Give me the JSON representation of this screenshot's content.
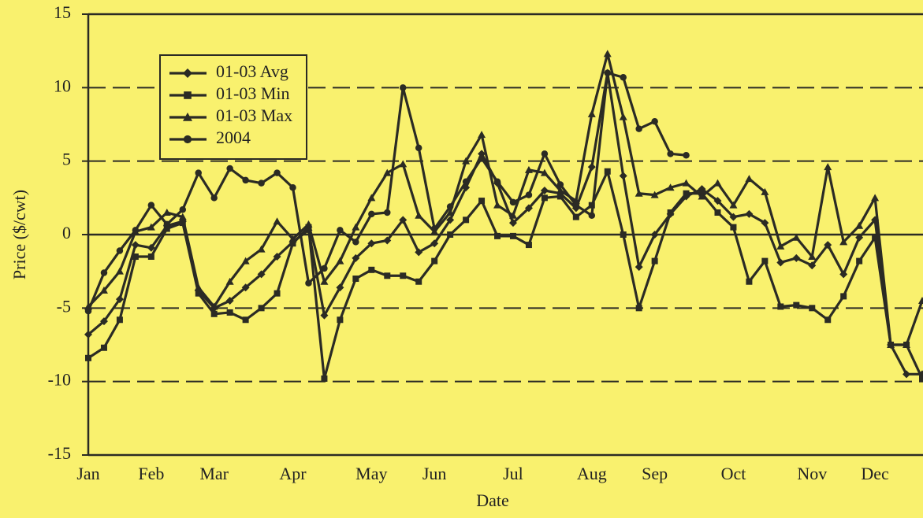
{
  "chart_data": {
    "type": "line",
    "x_label": "Date",
    "y_label": "Price ($/cwt)",
    "categories": [
      "Jan",
      null,
      null,
      null,
      "Feb",
      null,
      null,
      null,
      "Mar",
      null,
      null,
      null,
      null,
      "Apr",
      null,
      null,
      null,
      null,
      "May",
      null,
      null,
      null,
      "Jun",
      null,
      null,
      null,
      null,
      "Jul",
      null,
      null,
      null,
      null,
      "Aug",
      null,
      null,
      null,
      "Sep",
      null,
      null,
      null,
      null,
      "Oct",
      null,
      null,
      null,
      null,
      "Nov",
      null,
      null,
      null,
      "Dec",
      null,
      null,
      null
    ],
    "series": [
      {
        "name": "01-03 Avg",
        "color": "#2b2b24",
        "marker": "diamond",
        "values": [
          -6.8,
          -5.9,
          -4.4,
          -0.7,
          -0.9,
          0.6,
          0.9,
          -3.8,
          -5.0,
          -4.5,
          -3.6,
          -2.7,
          -1.5,
          -0.5,
          0.3,
          -5.5,
          -3.6,
          -1.6,
          -0.6,
          -0.4,
          1.0,
          -1.2,
          -0.6,
          1.0,
          3.2,
          5.5,
          3.5,
          0.8,
          1.8,
          3.0,
          2.8,
          1.8,
          4.6,
          11.0,
          4.0,
          -2.2,
          0.0,
          1.4,
          2.6,
          3.1,
          2.3,
          1.2,
          1.4,
          0.8,
          -1.9,
          -1.6,
          -2.1,
          -0.7,
          -2.7,
          -0.2,
          1.0,
          -7.5,
          -9.5,
          -9.5
        ]
      },
      {
        "name": "01-03 Min",
        "color": "#2b2b24",
        "marker": "square",
        "values": [
          -8.4,
          -7.7,
          -5.8,
          -1.5,
          -1.5,
          0.4,
          0.8,
          -4.0,
          -5.4,
          -5.3,
          -5.8,
          -5.0,
          -4.0,
          -0.6,
          0.5,
          -9.8,
          -5.8,
          -3.0,
          -2.4,
          -2.8,
          -2.8,
          -3.2,
          -1.8,
          0.0,
          1.0,
          2.3,
          -0.1,
          -0.1,
          -0.7,
          2.5,
          2.6,
          1.2,
          2.0,
          4.3,
          0.0,
          -5.0,
          -1.8,
          1.5,
          2.8,
          2.8,
          1.5,
          0.5,
          -3.2,
          -1.8,
          -4.9,
          -4.8,
          -5.0,
          -5.8,
          -4.2,
          -1.8,
          -0.2,
          -7.5,
          -7.5,
          -9.8
        ]
      },
      {
        "name": "01-03 Max",
        "color": "#2b2b24",
        "marker": "triangle",
        "values": [
          -4.9,
          -3.8,
          -2.5,
          0.2,
          0.5,
          1.5,
          1.2,
          -3.6,
          -4.9,
          -3.2,
          -1.8,
          -1.0,
          0.9,
          -0.3,
          0.7,
          -3.2,
          -1.8,
          0.5,
          2.5,
          4.2,
          4.8,
          1.3,
          0.2,
          1.5,
          5.0,
          6.8,
          2.0,
          1.3,
          4.4,
          4.2,
          3.0,
          2.3,
          8.2,
          12.3,
          8.0,
          2.8,
          2.7,
          3.2,
          3.5,
          2.6,
          3.5,
          2.0,
          3.8,
          2.9,
          -0.8,
          -0.2,
          -1.5,
          4.6,
          -0.5,
          0.6,
          2.5,
          -7.5,
          -7.5,
          -4.5
        ]
      },
      {
        "name": "2004",
        "color": "#2b2b24",
        "marker": "circle",
        "values": [
          -5.2,
          -2.6,
          -1.1,
          0.3,
          2.0,
          0.7,
          1.7,
          4.2,
          2.5,
          4.5,
          3.7,
          3.5,
          4.2,
          3.2,
          -3.3,
          -2.3,
          0.3,
          -0.5,
          1.4,
          1.5,
          10.0,
          5.9,
          0.4,
          1.9,
          3.6,
          5.2,
          3.6,
          2.2,
          2.7,
          5.5,
          3.4,
          2.0,
          1.3,
          11.0,
          10.7,
          7.2,
          7.7,
          5.5,
          5.4,
          null,
          null,
          null,
          null,
          null,
          null,
          null,
          null,
          null,
          null,
          null,
          null,
          null,
          null,
          null
        ]
      }
    ],
    "ylim": [
      -15,
      15
    ],
    "yticks": [
      -15,
      -10,
      -5,
      0,
      5,
      10,
      15
    ],
    "grid": true,
    "legend": "upper left"
  }
}
